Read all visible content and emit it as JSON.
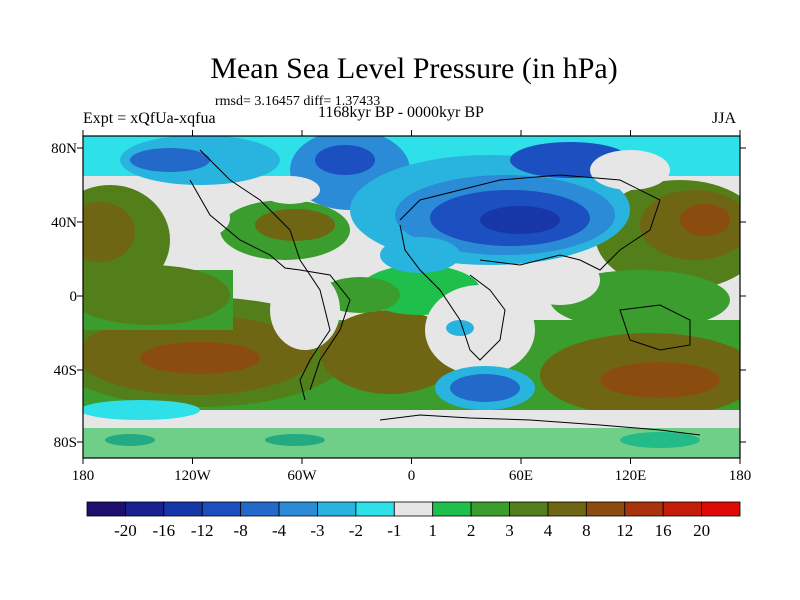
{
  "title": "Mean Sea Level Pressure (in hPa)",
  "stats": "rmsd= 3.16457 diff= 1.37433",
  "experiment": "Expt = xQfUa-xqfua",
  "period": "1168kyr BP - 0000kyr BP",
  "season": "JJA",
  "lat_labels": [
    "80N",
    "40N",
    "0",
    "40S",
    "80S"
  ],
  "lon_labels": [
    "180",
    "120W",
    "60W",
    "0",
    "60E",
    "120E",
    "180"
  ],
  "colorbar": {
    "labels": [
      "-20",
      "-16",
      "-12",
      "-8",
      "-4",
      "-3",
      "-2",
      "-1",
      "1",
      "2",
      "3",
      "4",
      "8",
      "12",
      "16",
      "20"
    ],
    "colors": [
      "#1e0f6e",
      "#19208f",
      "#1737a8",
      "#1c4fc0",
      "#2369c9",
      "#2b8bd6",
      "#29b4e0",
      "#2ee0e8",
      "#e6e6e6",
      "#1fbf4b",
      "#3a9d2e",
      "#537f1a",
      "#6e6612",
      "#8a4d0f",
      "#a8330c",
      "#c41d0a",
      "#de0a06"
    ]
  },
  "colors": {
    "land_outline": "#000000",
    "frame": "#000000"
  }
}
